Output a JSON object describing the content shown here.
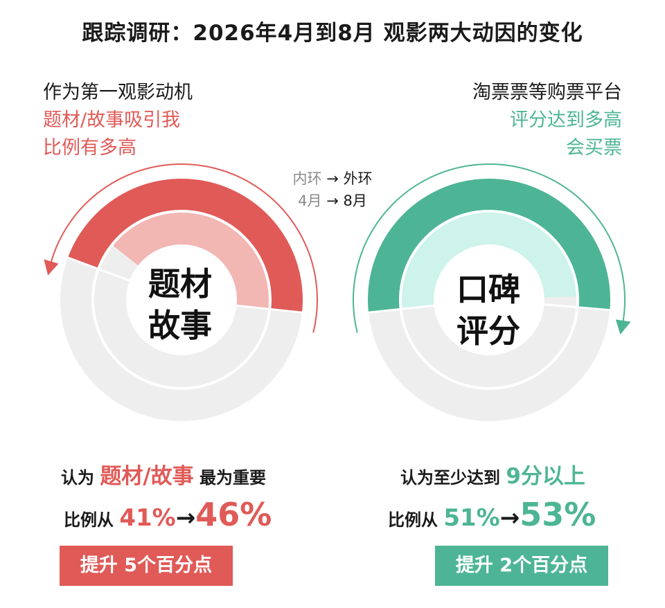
{
  "title": "跟踪调研：2026年4月到8月 观影两大动因的变化",
  "legend": {
    "inner": "内环",
    "outer": "外环",
    "arrow": "→",
    "from": "4月",
    "to": "8月"
  },
  "colors": {
    "red": "#e05a57",
    "red_light": "#f2b6b3",
    "green": "#4db595",
    "green_light": "#cdf3ea",
    "track": "#eeeeee"
  },
  "left": {
    "caption": {
      "line1": "作为第一观影动机",
      "line2": "题材/故事吸引我",
      "line3": "比例有多高"
    },
    "center": {
      "line1": "题材",
      "line2": "故事"
    },
    "stat1": {
      "prefix": "认为 ",
      "highlight": "题材/故事",
      "suffix": " 最为重要"
    },
    "stat2": {
      "prefix": "比例从 ",
      "from": "41%",
      "arrow": "→",
      "to": "46%"
    },
    "badge": "提升 5个百分点"
  },
  "right": {
    "caption": {
      "line1": "淘票票等购票平台",
      "line2": "评分达到多高",
      "line3": "会买票"
    },
    "center": {
      "line1": "口碑",
      "line2": "评分"
    },
    "stat1": {
      "prefix": "认为至少达到 ",
      "highlight": "9分以上"
    },
    "stat2": {
      "prefix": "比例从 ",
      "from": "51%",
      "arrow": "→",
      "to": "53%"
    },
    "badge": "提升 2个百分点"
  },
  "chart_data": [
    {
      "type": "pie",
      "name": "题材故事",
      "series": [
        {
          "name": "4月",
          "values": [
            41
          ]
        },
        {
          "name": "8月",
          "values": [
            46
          ]
        }
      ],
      "unit": "%",
      "direction": "counterclockwise"
    },
    {
      "type": "pie",
      "name": "口碑评分",
      "series": [
        {
          "name": "4月",
          "values": [
            51
          ]
        },
        {
          "name": "8月",
          "values": [
            53
          ]
        }
      ],
      "unit": "%",
      "direction": "clockwise"
    }
  ]
}
